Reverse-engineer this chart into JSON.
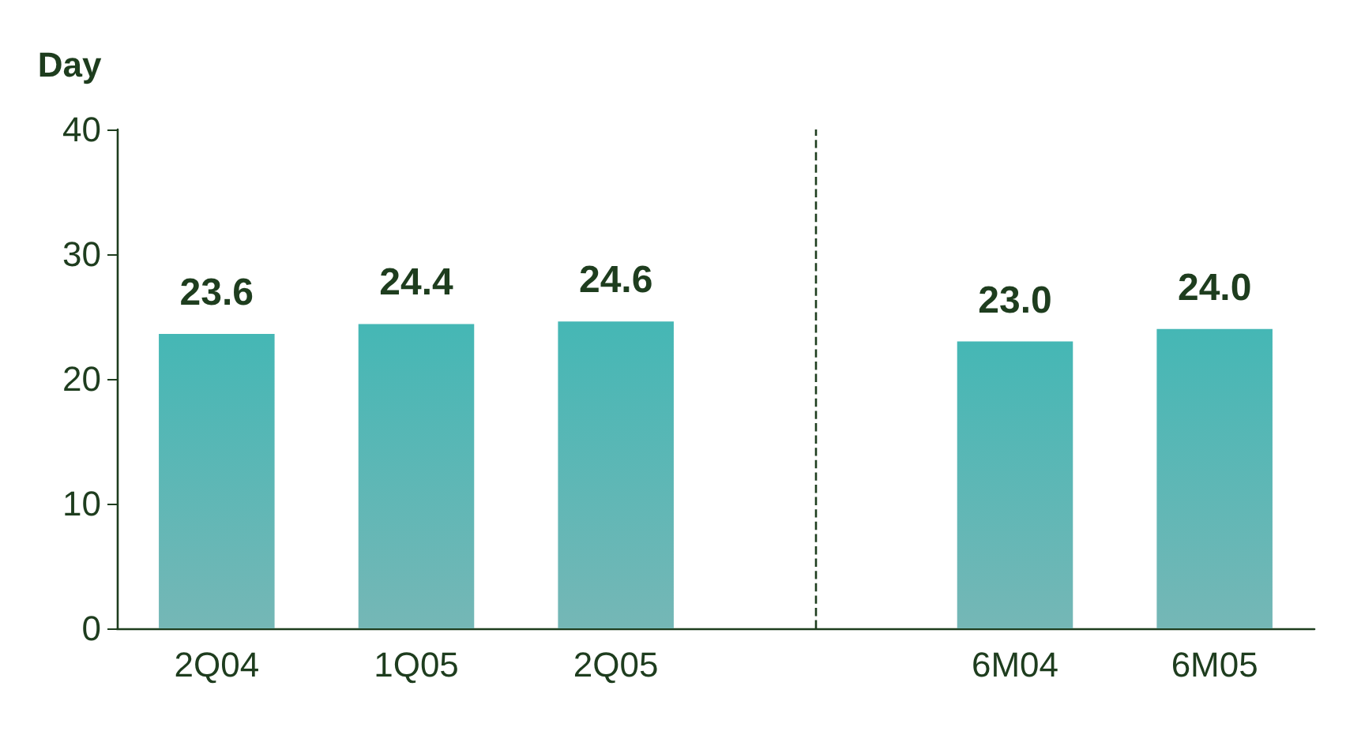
{
  "chart_data": {
    "type": "bar",
    "ylabel": "Day",
    "categories": [
      "2Q04",
      "1Q05",
      "2Q05",
      null,
      "6M04",
      "6M05"
    ],
    "values": [
      23.6,
      24.4,
      24.6,
      null,
      23.0,
      24.0
    ],
    "value_labels": [
      "23.6",
      "24.4",
      "24.6",
      null,
      "23.0",
      "24.0"
    ],
    "color": "#3a9997",
    "ylim": [
      0,
      40
    ],
    "yticks": [
      0,
      10,
      20,
      30,
      40
    ]
  }
}
